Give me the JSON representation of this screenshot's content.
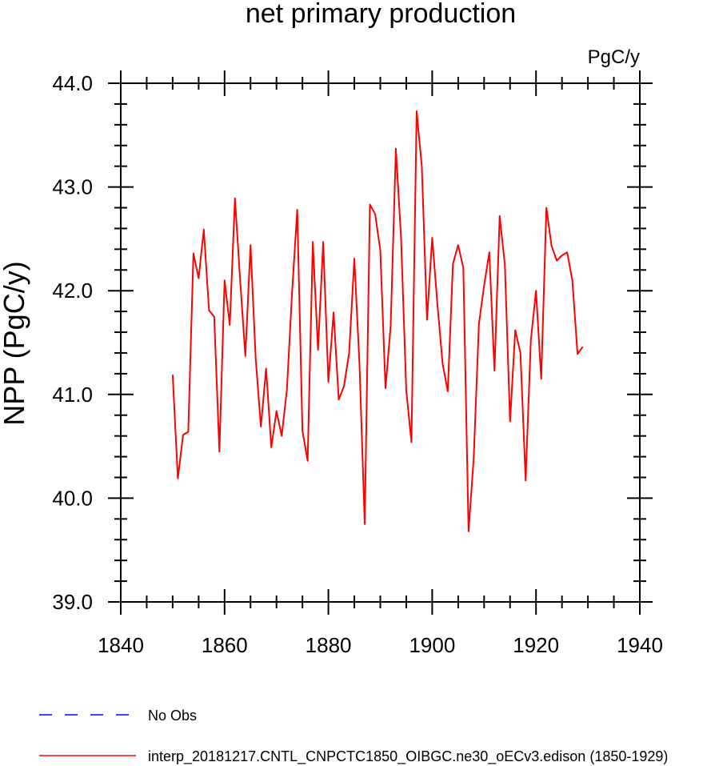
{
  "chart_data": {
    "type": "line",
    "title": "net primary production",
    "units_label": "PgC/y",
    "xlabel": "",
    "ylabel": "NPP  (PgC/y)",
    "xlim": [
      1840,
      1940
    ],
    "ylim": [
      39.0,
      44.0
    ],
    "x_ticks": [
      1840,
      1860,
      1880,
      1900,
      1920,
      1940
    ],
    "x_tick_labels": [
      "1840",
      "1860",
      "1880",
      "1900",
      "1920",
      "1940"
    ],
    "y_ticks": [
      39.0,
      40.0,
      41.0,
      42.0,
      43.0,
      44.0
    ],
    "y_tick_labels": [
      "39.0",
      "40.0",
      "41.0",
      "42.0",
      "43.0",
      "44.0"
    ],
    "grid": false,
    "legend_position": "bottom",
    "series": [
      {
        "name": "No Obs",
        "color": "#0000ff",
        "style": "dashed",
        "x": [],
        "values": []
      },
      {
        "name": "interp_20181217.CNTL_CNPCTC1850_OIBGC.ne30_oECv3.edison (1850-1929)",
        "color": "#ff0000",
        "style": "solid",
        "x": [
          1850,
          1851,
          1852,
          1853,
          1854,
          1855,
          1856,
          1857,
          1858,
          1859,
          1860,
          1861,
          1862,
          1863,
          1864,
          1865,
          1866,
          1867,
          1868,
          1869,
          1870,
          1871,
          1872,
          1873,
          1874,
          1875,
          1876,
          1877,
          1878,
          1879,
          1880,
          1881,
          1882,
          1883,
          1884,
          1885,
          1886,
          1887,
          1888,
          1889,
          1890,
          1891,
          1892,
          1893,
          1894,
          1895,
          1896,
          1897,
          1898,
          1899,
          1900,
          1901,
          1902,
          1903,
          1904,
          1905,
          1906,
          1907,
          1908,
          1909,
          1910,
          1911,
          1912,
          1913,
          1914,
          1915,
          1916,
          1917,
          1918,
          1919,
          1920,
          1921,
          1922,
          1923,
          1924,
          1925,
          1926,
          1927,
          1928,
          1929
        ],
        "values": [
          41.19,
          40.19,
          40.61,
          40.64,
          42.36,
          42.12,
          42.59,
          41.81,
          41.75,
          40.45,
          42.1,
          41.67,
          42.89,
          42.1,
          41.37,
          42.44,
          41.34,
          40.69,
          41.25,
          40.49,
          40.84,
          40.6,
          41.04,
          41.98,
          42.78,
          40.65,
          40.36,
          42.47,
          41.43,
          42.47,
          41.12,
          41.79,
          40.95,
          41.08,
          41.4,
          42.31,
          41.28,
          39.75,
          42.83,
          42.74,
          42.39,
          41.06,
          41.66,
          43.37,
          42.51,
          41.04,
          40.54,
          43.73,
          43.2,
          41.72,
          42.51,
          41.87,
          41.3,
          41.03,
          42.26,
          42.44,
          42.22,
          39.68,
          40.39,
          41.68,
          42.05,
          42.37,
          41.23,
          42.72,
          42.25,
          40.74,
          41.62,
          41.4,
          40.17,
          41.52,
          42.0,
          41.15,
          42.8,
          42.43,
          42.29,
          42.34,
          42.37,
          42.1,
          41.39,
          41.46
        ]
      }
    ]
  }
}
